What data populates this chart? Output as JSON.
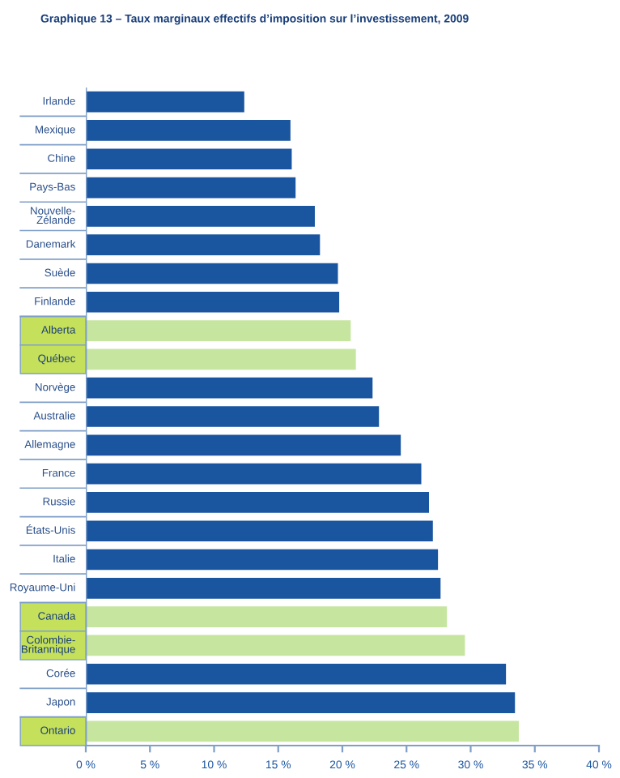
{
  "chart_data": {
    "type": "bar",
    "orientation": "horizontal",
    "title": "Graphique 13 – Taux marginaux effectifs d’imposition sur l’investissement, 2009",
    "categories": [
      "Irlande",
      "Mexique",
      "Chine",
      "Pays-Bas",
      "Nouvelle-\nZélande",
      "Danemark",
      "Suède",
      "Finlande",
      "Alberta",
      "Québec",
      "Norvège",
      "Australie",
      "Allemagne",
      "France",
      "Russie",
      "États-Unis",
      "Italie",
      "Royaume-Uni",
      "Canada",
      "Colombie-\nBritannique",
      "Corée",
      "Japon",
      "Ontario"
    ],
    "values": [
      12.3,
      15.9,
      16.0,
      16.3,
      17.8,
      18.2,
      19.6,
      19.7,
      20.6,
      21.0,
      22.3,
      22.8,
      24.5,
      26.1,
      26.7,
      27.0,
      27.4,
      27.6,
      28.1,
      29.5,
      32.7,
      33.4,
      33.7
    ],
    "colors": [
      "#1a55a0",
      "#1a55a0",
      "#1a55a0",
      "#1a55a0",
      "#1a55a0",
      "#1a55a0",
      "#1a55a0",
      "#1a55a0",
      "#c6e6a0",
      "#c6e6a0",
      "#1a55a0",
      "#1a55a0",
      "#1a55a0",
      "#1a55a0",
      "#1a55a0",
      "#1a55a0",
      "#1a55a0",
      "#1a55a0",
      "#c6e6a0",
      "#c6e6a0",
      "#1a55a0",
      "#1a55a0",
      "#c6e6a0"
    ],
    "xlim": [
      0,
      40
    ],
    "xticks": [
      {
        "value": 0,
        "label": "0 %"
      },
      {
        "value": 5,
        "label": "5 %"
      },
      {
        "value": 10,
        "label": "10 %"
      },
      {
        "value": 15,
        "label": "15 %"
      },
      {
        "value": 20,
        "label": "20 %"
      },
      {
        "value": 25,
        "label": "25 %"
      },
      {
        "value": 30,
        "label": "30 %"
      },
      {
        "value": 35,
        "label": "35 %"
      },
      {
        "value": 40,
        "label": "40 %"
      }
    ],
    "grid": false
  }
}
